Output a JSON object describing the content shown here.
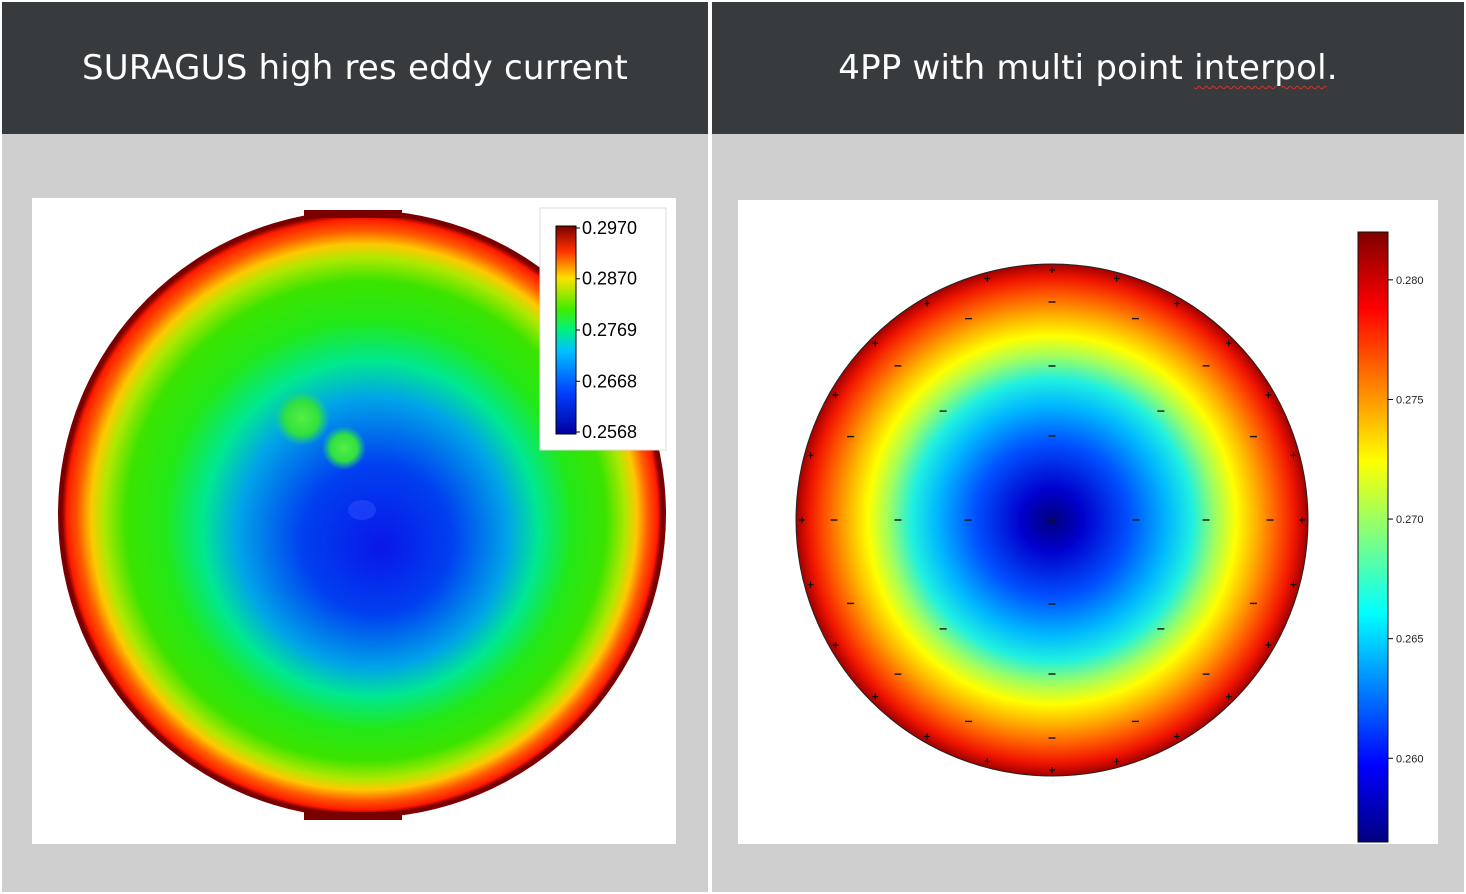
{
  "panels": [
    {
      "title_main": "SURAGUS high res eddy current",
      "title_marked": "",
      "title_tail": ""
    },
    {
      "title_main": "4PP with multi point ",
      "title_marked": "interpol",
      "title_tail": "."
    }
  ],
  "chart_data": [
    {
      "type": "heatmap",
      "title": "SURAGUS high res eddy current",
      "description_shape": "circular wafer map",
      "colormap": "blue-green-red",
      "colorbar": {
        "placement": "top-right",
        "ticks": [
          0.297,
          0.287,
          0.2769,
          0.2668,
          0.2568
        ],
        "tick_labels": [
          "0.2970",
          "0.2870",
          "0.2769",
          "0.2668",
          "0.2568"
        ],
        "range": [
          0.2568,
          0.297
        ]
      },
      "colors": [
        "#0000a0",
        "#0022ff",
        "#00a4ff",
        "#00f080",
        "#20ee20",
        "#90ee00",
        "#ffe000",
        "#ff8000",
        "#ff1a00",
        "#7a0000"
      ]
    },
    {
      "type": "heatmap",
      "title": "4PP with multi point interpol.",
      "description_shape": "circular wafer map",
      "colormap": "jet",
      "colorbar": {
        "placement": "right",
        "ticks": [
          0.28,
          0.275,
          0.27,
          0.265,
          0.26
        ],
        "tick_labels": [
          "0.280",
          "0.275",
          "0.270",
          "0.265",
          "0.260"
        ],
        "range": [
          0.2565,
          0.282
        ]
      },
      "measurement_rings": [
        {
          "count": 1,
          "marker": "+"
        },
        {
          "count": 4,
          "marker": "–"
        },
        {
          "count": 8,
          "marker": "–"
        },
        {
          "count": 16,
          "marker": "–"
        },
        {
          "count": 24,
          "marker": "+"
        }
      ],
      "colors": [
        "#00007f",
        "#0000ff",
        "#007fff",
        "#00ffff",
        "#7fff7f",
        "#ffff00",
        "#ff7f00",
        "#ff0000",
        "#7f0000"
      ]
    }
  ]
}
